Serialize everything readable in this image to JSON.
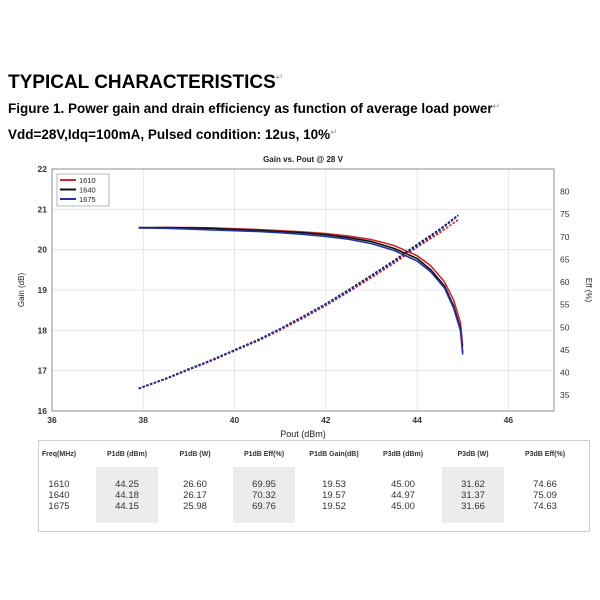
{
  "header": {
    "title": "TYPICAL CHARACTERISTICS",
    "subtitle": "Figure 1. Power gain and drain efficiency as function of average load power",
    "conditions": "Vdd=28V,Idq=100mA, Pulsed condition: 12us, 10%"
  },
  "chart_data": {
    "type": "line",
    "title": "Gain vs. Pout @ 28 V",
    "xlabel": "Pout (dBm)",
    "ylabel": "Gain (dB)",
    "y2label": "Eff (%)",
    "xlim": [
      36,
      47
    ],
    "ylim": [
      16,
      22
    ],
    "y2lim": [
      31.5,
      85
    ],
    "xticks": [
      36,
      38,
      40,
      42,
      44,
      46
    ],
    "yticks": [
      16,
      17,
      18,
      19,
      20,
      21,
      22
    ],
    "y2ticks": [
      35,
      40,
      45,
      50,
      55,
      60,
      65,
      70,
      75,
      80
    ],
    "grid": true,
    "legend_position": "top-left",
    "series": [
      {
        "name": "1610",
        "color": "#cc2a2a",
        "axis": "left",
        "x": [
          37.9,
          38.5,
          39.0,
          39.5,
          40.0,
          40.5,
          41.0,
          41.5,
          42.0,
          42.5,
          43.0,
          43.5,
          44.0,
          44.3,
          44.6,
          44.8,
          44.95,
          45.0
        ],
        "y": [
          20.54,
          20.55,
          20.55,
          20.54,
          20.52,
          20.5,
          20.47,
          20.44,
          20.4,
          20.34,
          20.25,
          20.1,
          19.85,
          19.6,
          19.2,
          18.75,
          18.2,
          17.6
        ]
      },
      {
        "name": "1640",
        "color": "#111111",
        "axis": "left",
        "x": [
          37.9,
          38.5,
          39.0,
          39.5,
          40.0,
          40.5,
          41.0,
          41.5,
          42.0,
          42.5,
          43.0,
          43.5,
          44.0,
          44.3,
          44.6,
          44.8,
          44.95,
          45.0
        ],
        "y": [
          20.55,
          20.55,
          20.54,
          20.53,
          20.5,
          20.48,
          20.45,
          20.42,
          20.37,
          20.3,
          20.2,
          20.03,
          19.78,
          19.5,
          19.1,
          18.6,
          18.05,
          17.45
        ]
      },
      {
        "name": "1675",
        "color": "#2233aa",
        "axis": "left",
        "x": [
          37.9,
          38.5,
          39.0,
          39.5,
          40.0,
          40.5,
          41.0,
          41.5,
          42.0,
          42.5,
          43.0,
          43.5,
          44.0,
          44.3,
          44.6,
          44.8,
          44.95,
          45.0
        ],
        "y": [
          20.54,
          20.53,
          20.51,
          20.49,
          20.47,
          20.45,
          20.42,
          20.38,
          20.33,
          20.26,
          20.15,
          19.98,
          19.72,
          19.45,
          19.05,
          18.55,
          18.0,
          17.4
        ]
      },
      {
        "name": "1610",
        "color": "#cc2a2a",
        "dashed": true,
        "axis": "right",
        "x": [
          37.9,
          38.5,
          39.0,
          39.5,
          40.0,
          40.5,
          41.0,
          41.5,
          42.0,
          42.5,
          43.0,
          43.5,
          44.0,
          44.5,
          44.9
        ],
        "y": [
          36.5,
          38.6,
          40.6,
          42.6,
          44.8,
          46.9,
          49.4,
          52.0,
          54.8,
          57.8,
          61.0,
          64.2,
          67.7,
          70.9,
          73.8
        ]
      },
      {
        "name": "1640",
        "color": "#111111",
        "dashed": true,
        "axis": "right",
        "x": [
          37.9,
          38.5,
          39.0,
          39.5,
          40.0,
          40.5,
          41.0,
          41.5,
          42.0,
          42.5,
          43.0,
          43.5,
          44.0,
          44.5,
          44.9
        ],
        "y": [
          36.5,
          38.7,
          40.8,
          42.8,
          45.0,
          47.2,
          49.7,
          52.4,
          55.2,
          58.3,
          61.5,
          64.8,
          68.3,
          71.7,
          74.8
        ]
      },
      {
        "name": "1675",
        "color": "#2233aa",
        "dashed": true,
        "axis": "right",
        "x": [
          37.9,
          38.5,
          39.0,
          39.5,
          40.0,
          40.5,
          41.0,
          41.5,
          42.0,
          42.5,
          43.0,
          43.5,
          44.0,
          44.5,
          44.9
        ],
        "y": [
          36.4,
          38.6,
          40.7,
          42.7,
          44.9,
          47.1,
          49.6,
          52.3,
          55.1,
          58.1,
          61.3,
          64.6,
          68.0,
          71.4,
          74.7
        ]
      }
    ]
  },
  "table": {
    "headers": [
      "Freq(MHz)",
      "P1dB (dBm)",
      "P1dB (W)",
      "P1dB Eff(%)",
      "P1dB Gain(dB)",
      "P3dB (dBm)",
      "P3dB (W)",
      "P3dB Eff(%)"
    ],
    "columns": [
      [
        "1610",
        "1640",
        "1675"
      ],
      [
        "44.25",
        "44.18",
        "44.15"
      ],
      [
        "26.60",
        "26.17",
        "25.98"
      ],
      [
        "69.95",
        "70.32",
        "69.76"
      ],
      [
        "19.53",
        "19.57",
        "19.52"
      ],
      [
        "45.00",
        "44.97",
        "45.00"
      ],
      [
        "31.62",
        "31.37",
        "31.66"
      ],
      [
        "74.66",
        "75.09",
        "74.63"
      ]
    ]
  }
}
